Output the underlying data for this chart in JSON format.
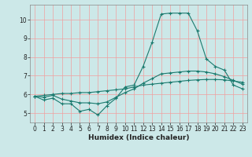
{
  "x": [
    0,
    1,
    2,
    3,
    4,
    5,
    6,
    7,
    8,
    9,
    10,
    11,
    12,
    13,
    14,
    15,
    16,
    17,
    18,
    19,
    20,
    21,
    22,
    23
  ],
  "line1": [
    5.9,
    5.7,
    5.8,
    5.5,
    5.5,
    5.1,
    5.2,
    4.9,
    5.4,
    5.8,
    6.4,
    6.5,
    7.5,
    8.8,
    10.3,
    10.35,
    10.35,
    10.35,
    9.4,
    7.9,
    7.5,
    7.3,
    6.5,
    6.3
  ],
  "line2": [
    5.9,
    5.85,
    5.95,
    5.75,
    5.65,
    5.55,
    5.55,
    5.5,
    5.6,
    5.85,
    6.1,
    6.3,
    6.6,
    6.85,
    7.1,
    7.15,
    7.2,
    7.25,
    7.25,
    7.2,
    7.1,
    6.95,
    6.75,
    6.55
  ],
  "line3": [
    5.9,
    5.95,
    6.0,
    6.05,
    6.05,
    6.1,
    6.1,
    6.15,
    6.2,
    6.25,
    6.3,
    6.4,
    6.5,
    6.55,
    6.6,
    6.65,
    6.7,
    6.75,
    6.78,
    6.8,
    6.8,
    6.78,
    6.72,
    6.65
  ],
  "line_color": "#1a7a6e",
  "bg_color": "#cce8e8",
  "grid_major_color": "#f0a0a0",
  "grid_minor_color": "#e8d0d0",
  "xlabel": "Humidex (Indice chaleur)",
  "ylim": [
    4.5,
    10.8
  ],
  "xlim": [
    -0.5,
    23.5
  ],
  "yticks": [
    5,
    6,
    7,
    8,
    9,
    10
  ],
  "xticks": [
    0,
    1,
    2,
    3,
    4,
    5,
    6,
    7,
    8,
    9,
    10,
    11,
    12,
    13,
    14,
    15,
    16,
    17,
    18,
    19,
    20,
    21,
    22,
    23
  ],
  "tick_fontsize": 5.5,
  "xlabel_fontsize": 6.5
}
